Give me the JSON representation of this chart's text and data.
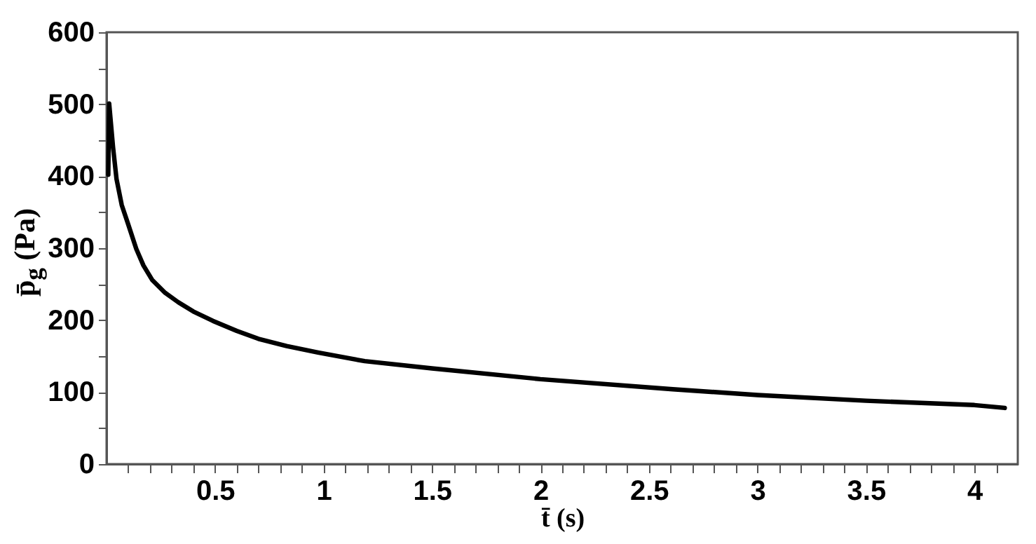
{
  "chart_data": {
    "type": "line",
    "xlabel": "t̄ (s)",
    "ylabel": "p̄$_{g}$ (Pa)",
    "x": [
      0.008,
      0.012,
      0.03,
      0.046,
      0.07,
      0.1,
      0.137,
      0.17,
      0.21,
      0.27,
      0.33,
      0.4,
      0.49,
      0.6,
      0.7,
      0.83,
      0.975,
      1.19,
      1.5,
      2,
      2.61,
      3,
      3.5,
      4,
      4.14
    ],
    "series": [
      {
        "color": "#000000",
        "values": [
          402,
          501,
          440,
          396,
          360,
          333,
          299,
          276,
          256,
          238,
          225,
          212,
          199,
          185,
          174,
          164,
          155,
          143,
          133,
          118,
          104,
          96,
          88,
          82,
          78
        ]
      }
    ],
    "xlim": [
      0,
      4.2
    ],
    "xticks": [
      {
        "value": 0.1,
        "label": null
      },
      {
        "value": 0.2,
        "label": null
      },
      {
        "value": 0.3,
        "label": null
      },
      {
        "value": 0.4,
        "label": null
      },
      0.5,
      {
        "value": 0.6,
        "label": null
      },
      {
        "value": 0.7,
        "label": null
      },
      {
        "value": 0.8,
        "label": null
      },
      {
        "value": 0.9,
        "label": null
      },
      1,
      {
        "value": 1.1,
        "label": null
      },
      {
        "value": 1.2,
        "label": null
      },
      {
        "value": 1.3,
        "label": null
      },
      {
        "value": 1.4,
        "label": null
      },
      1.5,
      {
        "value": 1.6,
        "label": null
      },
      {
        "value": 1.7,
        "label": null
      },
      {
        "value": 1.8,
        "label": null
      },
      {
        "value": 1.9,
        "label": null
      },
      2,
      {
        "value": 2.1,
        "label": null
      },
      {
        "value": 2.2,
        "label": null
      },
      {
        "value": 2.3,
        "label": null
      },
      {
        "value": 2.4,
        "label": null
      },
      2.5,
      {
        "value": 2.6,
        "label": null
      },
      {
        "value": 2.7,
        "label": null
      },
      {
        "value": 2.8,
        "label": null
      },
      {
        "value": 2.9,
        "label": null
      },
      3,
      {
        "value": 3.1,
        "label": null
      },
      {
        "value": 3.2,
        "label": null
      },
      {
        "value": 3.3,
        "label": null
      },
      {
        "value": 3.4,
        "label": null
      },
      3.5,
      {
        "value": 3.6,
        "label": null
      },
      {
        "value": 3.7,
        "label": null
      },
      {
        "value": 3.8,
        "label": null
      },
      {
        "value": 3.9,
        "label": null
      },
      4,
      {
        "value": 4.1,
        "label": null
      }
    ],
    "ylim": [
      0,
      600
    ],
    "yticks": [
      0,
      {
        "value": 50,
        "label": null
      },
      100,
      {
        "value": 150,
        "label": null
      },
      200,
      {
        "value": 250,
        "label": null
      },
      300,
      {
        "value": 350,
        "label": null
      },
      400,
      {
        "value": 450,
        "label": null
      },
      500,
      {
        "value": 550,
        "label": null
      },
      600
    ],
    "grid": false,
    "line_style": "solid"
  }
}
